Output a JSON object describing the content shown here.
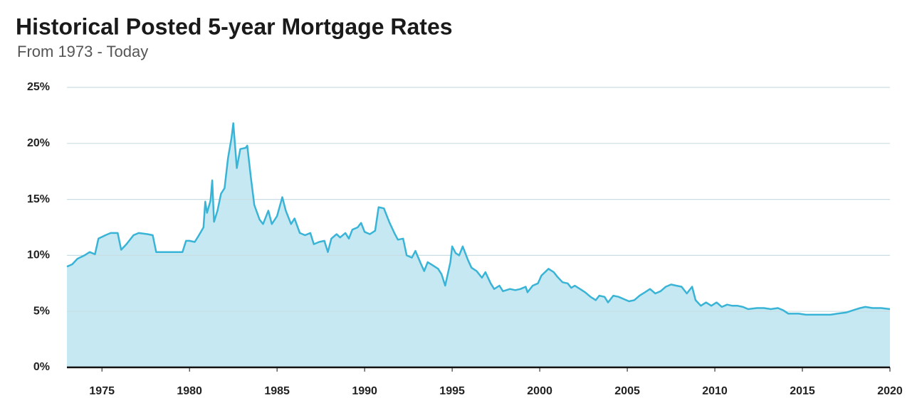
{
  "chart_data": {
    "type": "area",
    "title": "Historical Posted 5-year Mortgage Rates",
    "subtitle": "From 1973 - Today",
    "color": "#3ab4d6",
    "fill_color": "#c5e8f2",
    "grid": true,
    "xlim": [
      1973,
      2020
    ],
    "xticks": [
      1975,
      1980,
      1985,
      1990,
      1995,
      2000,
      2005,
      2010,
      2015,
      2020
    ],
    "ylim": [
      0,
      25
    ],
    "yticks": [
      {
        "value": 0,
        "label": "0%"
      },
      {
        "value": 5,
        "label": "5%"
      },
      {
        "value": 10,
        "label": "10%"
      },
      {
        "value": 15,
        "label": "15%"
      },
      {
        "value": 20,
        "label": "20%"
      },
      {
        "value": 25,
        "label": "25%"
      }
    ],
    "x": [
      1973.0,
      1973.3,
      1973.6,
      1974.0,
      1974.3,
      1974.6,
      1974.8,
      1975.2,
      1975.5,
      1975.9,
      1976.1,
      1976.4,
      1976.8,
      1977.1,
      1977.6,
      1977.9,
      1978.1,
      1979.0,
      1979.6,
      1979.8,
      1980.0,
      1980.3,
      1980.5,
      1980.8,
      1980.9,
      1981.0,
      1981.2,
      1981.3,
      1981.4,
      1981.6,
      1981.8,
      1982.0,
      1982.2,
      1982.4,
      1982.5,
      1982.7,
      1982.9,
      1983.2,
      1983.3,
      1983.5,
      1983.7,
      1984.0,
      1984.2,
      1984.5,
      1984.7,
      1985.0,
      1985.3,
      1985.5,
      1985.8,
      1986.0,
      1986.3,
      1986.6,
      1986.9,
      1987.1,
      1987.4,
      1987.7,
      1987.9,
      1988.1,
      1988.4,
      1988.6,
      1988.9,
      1989.1,
      1989.3,
      1989.6,
      1989.8,
      1990.0,
      1990.3,
      1990.6,
      1990.8,
      1991.1,
      1991.4,
      1991.7,
      1991.9,
      1992.2,
      1992.4,
      1992.7,
      1992.9,
      1993.2,
      1993.4,
      1993.6,
      1993.9,
      1994.2,
      1994.4,
      1994.6,
      1994.9,
      1995.0,
      1995.2,
      1995.4,
      1995.6,
      1995.9,
      1996.1,
      1996.4,
      1996.7,
      1996.9,
      1997.2,
      1997.4,
      1997.7,
      1997.9,
      1998.3,
      1998.6,
      1998.9,
      1999.2,
      1999.3,
      1999.6,
      1999.9,
      2000.1,
      2000.3,
      2000.5,
      2000.8,
      2001.0,
      2001.3,
      2001.6,
      2001.8,
      2002.0,
      2002.3,
      2002.6,
      2002.9,
      2003.2,
      2003.4,
      2003.7,
      2003.9,
      2004.2,
      2004.5,
      2004.8,
      2005.1,
      2005.4,
      2005.7,
      2006.0,
      2006.3,
      2006.6,
      2006.9,
      2007.2,
      2007.5,
      2007.8,
      2008.1,
      2008.4,
      2008.7,
      2008.9,
      2009.2,
      2009.5,
      2009.8,
      2010.1,
      2010.4,
      2010.7,
      2011.0,
      2011.3,
      2011.6,
      2011.9,
      2012.4,
      2012.8,
      2013.2,
      2013.6,
      2013.9,
      2014.2,
      2014.8,
      2015.2,
      2015.8,
      2016.6,
      2017.0,
      2017.5,
      2017.9,
      2018.3,
      2018.6,
      2019.0,
      2019.5,
      2020.0
    ],
    "values": [
      9.0,
      9.2,
      9.7,
      10.0,
      10.3,
      10.1,
      11.5,
      11.8,
      12.0,
      12.0,
      10.5,
      11.0,
      11.8,
      12.0,
      11.9,
      11.8,
      10.3,
      10.3,
      10.3,
      11.3,
      11.3,
      11.2,
      11.7,
      12.5,
      14.8,
      13.8,
      14.9,
      16.7,
      13.0,
      14.0,
      15.5,
      16.0,
      18.7,
      20.5,
      21.8,
      17.8,
      19.5,
      19.6,
      19.8,
      17.0,
      14.5,
      13.2,
      12.8,
      14.0,
      12.8,
      13.5,
      15.2,
      14.0,
      12.8,
      13.3,
      12.0,
      11.8,
      12.0,
      11.0,
      11.2,
      11.3,
      10.3,
      11.5,
      11.9,
      11.6,
      12.0,
      11.5,
      12.3,
      12.5,
      12.9,
      12.1,
      11.9,
      12.2,
      14.3,
      14.2,
      13.0,
      12.0,
      11.4,
      11.5,
      10.0,
      9.8,
      10.4,
      9.3,
      8.6,
      9.4,
      9.1,
      8.8,
      8.3,
      7.3,
      9.4,
      10.8,
      10.2,
      10.0,
      10.8,
      9.6,
      8.9,
      8.6,
      8.0,
      8.5,
      7.5,
      7.0,
      7.3,
      6.8,
      7.0,
      6.9,
      7.0,
      7.2,
      6.7,
      7.3,
      7.5,
      8.2,
      8.5,
      8.8,
      8.5,
      8.1,
      7.6,
      7.5,
      7.1,
      7.3,
      7.0,
      6.7,
      6.3,
      6.0,
      6.4,
      6.3,
      5.8,
      6.4,
      6.3,
      6.1,
      5.9,
      6.0,
      6.4,
      6.7,
      7.0,
      6.6,
      6.8,
      7.2,
      7.4,
      7.3,
      7.2,
      6.6,
      7.2,
      6.0,
      5.5,
      5.8,
      5.5,
      5.8,
      5.4,
      5.6,
      5.5,
      5.5,
      5.4,
      5.2,
      5.3,
      5.3,
      5.2,
      5.3,
      5.1,
      4.8,
      4.8,
      4.7,
      4.7,
      4.7,
      4.8,
      4.9,
      5.1,
      5.3,
      5.4,
      5.3,
      5.3,
      5.2
    ]
  }
}
